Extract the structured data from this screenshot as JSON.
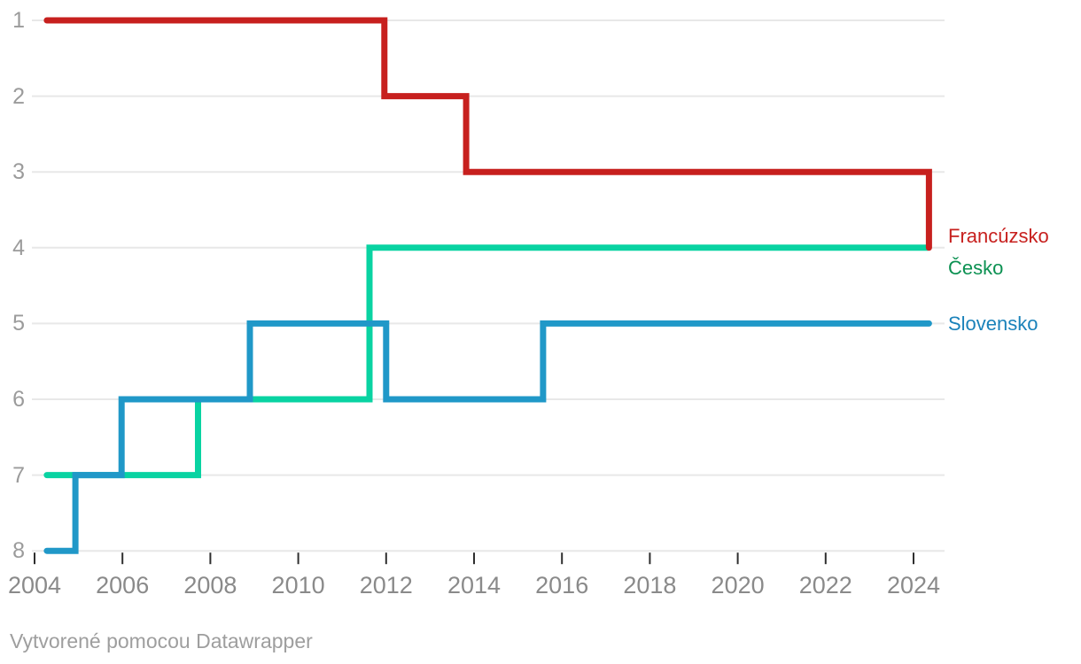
{
  "chart_data": {
    "type": "line",
    "subtype": "step-rank",
    "title": "",
    "xlabel": "",
    "ylabel": "",
    "x_ticks": [
      2004,
      2006,
      2008,
      2010,
      2012,
      2014,
      2016,
      2018,
      2020,
      2022,
      2024
    ],
    "y_ticks": [
      1,
      2,
      3,
      4,
      5,
      6,
      7,
      8
    ],
    "x_range": [
      2004,
      2024.7
    ],
    "y_range": [
      1,
      8
    ],
    "y_inverted": true,
    "grid": "horizontal",
    "legend_position": "right-of-line-end",
    "grid_color": "#e8e8e8",
    "tick_color": "#2e2e2e",
    "series": [
      {
        "id": "francuzsko",
        "name": "Francúzsko",
        "color": "#c7201e",
        "label_color": "#c7201e",
        "label_dy": -13,
        "zorder": 3,
        "points": [
          [
            2004.28,
            1
          ],
          [
            2011.96,
            1
          ],
          [
            2011.96,
            2
          ],
          [
            2013.82,
            2
          ],
          [
            2013.82,
            3
          ],
          [
            2024.35,
            3
          ],
          [
            2024.35,
            4
          ]
        ]
      },
      {
        "id": "cesko",
        "name": "Česko",
        "color": "#09d3a2",
        "label_color": "#0c9152",
        "label_dy": 23,
        "zorder": 1,
        "points": [
          [
            2004.28,
            7
          ],
          [
            2007.72,
            7
          ],
          [
            2007.72,
            6
          ],
          [
            2011.62,
            6
          ],
          [
            2011.62,
            4
          ],
          [
            2024.32,
            4
          ]
        ]
      },
      {
        "id": "slovensko",
        "name": "Slovensko",
        "color": "#2098c8",
        "label_color": "#1a82ba",
        "label_dy": 1,
        "zorder": 2,
        "points": [
          [
            2004.28,
            8
          ],
          [
            2004.93,
            8
          ],
          [
            2004.93,
            7
          ],
          [
            2005.98,
            7
          ],
          [
            2005.98,
            6
          ],
          [
            2008.9,
            6
          ],
          [
            2008.9,
            5
          ],
          [
            2012.0,
            5
          ],
          [
            2012.0,
            6
          ],
          [
            2015.57,
            6
          ],
          [
            2015.57,
            5
          ],
          [
            2024.35,
            5
          ]
        ]
      }
    ]
  },
  "footer": {
    "credit": "Vytvorené pomocou Datawrapper"
  }
}
